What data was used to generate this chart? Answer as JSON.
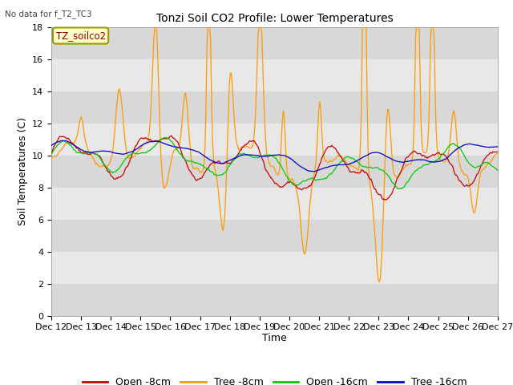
{
  "title": "Tonzi Soil CO2 Profile: Lower Temperatures",
  "subtitle": "No data for f_T2_TC3",
  "ylabel": "Soil Temperatures (C)",
  "xlabel": "Time",
  "legend_label": "TZ_soilco2",
  "ylim": [
    0,
    18
  ],
  "yticks": [
    0,
    2,
    4,
    6,
    8,
    10,
    12,
    14,
    16,
    18
  ],
  "xtick_labels": [
    "Dec 12",
    "Dec 13",
    "Dec 14",
    "Dec 15",
    "Dec 16",
    "Dec 17",
    "Dec 18",
    "Dec 19",
    "Dec 20",
    "Dec 21",
    "Dec 22",
    "Dec 23",
    "Dec 24",
    "Dec 25",
    "Dec 26",
    "Dec 27"
  ],
  "line_colors": {
    "open_8cm": "#cc0000",
    "tree_8cm": "#ff9900",
    "open_16cm": "#00cc00",
    "tree_16cm": "#0000cc"
  },
  "line_labels": [
    "Open -8cm",
    "Tree -8cm",
    "Open -16cm",
    "Tree -16cm"
  ],
  "fig_bg_color": "#ffffff",
  "plot_bg_color": "#e8e8e8",
  "band_color_light": "#f0f0f0",
  "band_color_dark": "#dcdcdc",
  "n_points": 480,
  "title_fontsize": 10,
  "tick_fontsize": 8,
  "label_fontsize": 9,
  "legend_fontsize": 9
}
